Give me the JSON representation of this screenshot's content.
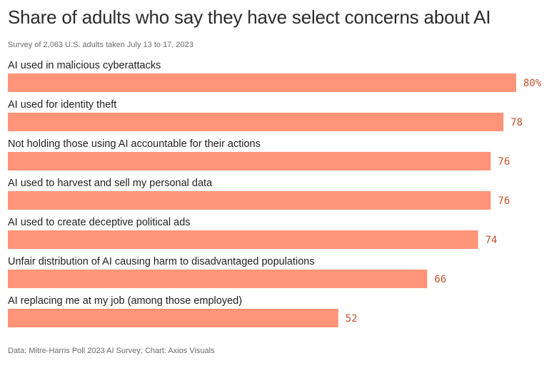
{
  "title": "Share of adults who say they have select concerns about AI",
  "subtitle": "Survey of 2,063 U.S. adults taken July 13 to 17, 2023",
  "footer": "Data: Mitre-Harris Poll 2023 AI Survey; Chart: Axios Visuals",
  "colors": {
    "bar": "#ff9478",
    "value_text": "#c4522d"
  },
  "chart_data": {
    "type": "bar",
    "orientation": "horizontal",
    "categories": [
      "AI used in malicious cyberattacks",
      "AI used for identity theft",
      "Not holding those using AI accountable for their actions",
      "AI used to harvest and sell my personal data",
      "AI used to create deceptive political ads",
      "Unfair distribution of AI causing harm to disadvantaged populations",
      "AI replacing me at my job (among those employed)"
    ],
    "values": [
      80,
      78,
      76,
      76,
      74,
      66,
      52
    ],
    "value_labels": [
      "80%",
      "78",
      "76",
      "76",
      "74",
      "66",
      "52"
    ],
    "unit": "%",
    "xlim": [
      0,
      80
    ],
    "grid": false,
    "legend": "none"
  }
}
